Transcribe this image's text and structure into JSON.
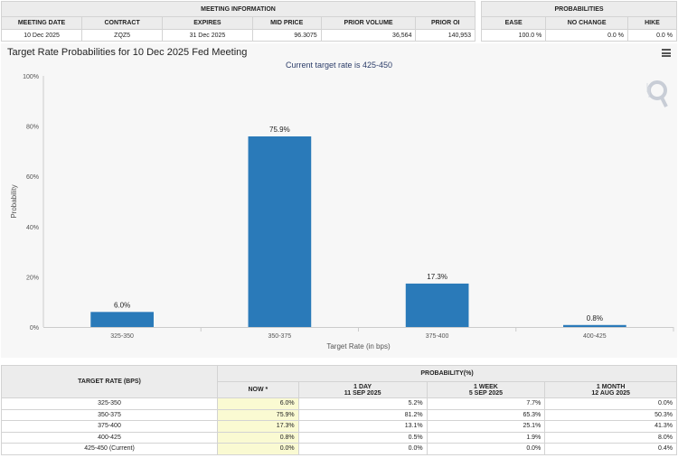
{
  "meeting_info": {
    "title": "MEETING INFORMATION",
    "columns": [
      "MEETING DATE",
      "CONTRACT",
      "EXPIRES",
      "MID PRICE",
      "PRIOR VOLUME",
      "PRIOR OI"
    ],
    "values": [
      "10 Dec 2025",
      "ZQZ5",
      "31 Dec 2025",
      "96.3075",
      "36,564",
      "140,953"
    ]
  },
  "probabilities": {
    "title": "PROBABILITIES",
    "columns": [
      "EASE",
      "NO CHANGE",
      "HIKE"
    ],
    "values": [
      "100.0 %",
      "0.0 %",
      "0.0 %"
    ]
  },
  "chart_data": {
    "type": "bar",
    "title": "Target Rate Probabilities for 10 Dec 2025 Fed Meeting",
    "subtitle": "Current target rate is 425-450",
    "xlabel": "Target Rate (in bps)",
    "ylabel": "Probability",
    "categories": [
      "325-350",
      "350-375",
      "375-400",
      "400-425"
    ],
    "values": [
      6.0,
      75.9,
      17.3,
      0.8
    ],
    "data_labels": [
      "6.0%",
      "75.9%",
      "17.3%",
      "0.8%"
    ],
    "ylim": [
      0,
      100
    ],
    "yticks": [
      0,
      20,
      40,
      60,
      80,
      100
    ],
    "ytick_labels": [
      "0%",
      "20%",
      "40%",
      "60%",
      "80%",
      "100%"
    ],
    "bar_color": "#2a7ab9",
    "grid": false
  },
  "prob_table": {
    "rate_header": "TARGET RATE (BPS)",
    "prob_header": "PROBABILITY(%)",
    "columns": [
      {
        "line1": "NOW *",
        "line2": ""
      },
      {
        "line1": "1 DAY",
        "line2": "11 SEP 2025"
      },
      {
        "line1": "1 WEEK",
        "line2": "5 SEP 2025"
      },
      {
        "line1": "1 MONTH",
        "line2": "12 AUG 2025"
      }
    ],
    "rows": [
      {
        "rate": "325-350",
        "values": [
          "6.0%",
          "5.2%",
          "7.7%",
          "0.0%"
        ]
      },
      {
        "rate": "350-375",
        "values": [
          "75.9%",
          "81.2%",
          "65.3%",
          "50.3%"
        ]
      },
      {
        "rate": "375-400",
        "values": [
          "17.3%",
          "13.1%",
          "25.1%",
          "41.3%"
        ]
      },
      {
        "rate": "400-425",
        "values": [
          "0.8%",
          "0.5%",
          "1.9%",
          "8.0%"
        ]
      },
      {
        "rate": "425-450 (Current)",
        "values": [
          "0.0%",
          "0.0%",
          "0.0%",
          "0.4%"
        ]
      }
    ]
  }
}
